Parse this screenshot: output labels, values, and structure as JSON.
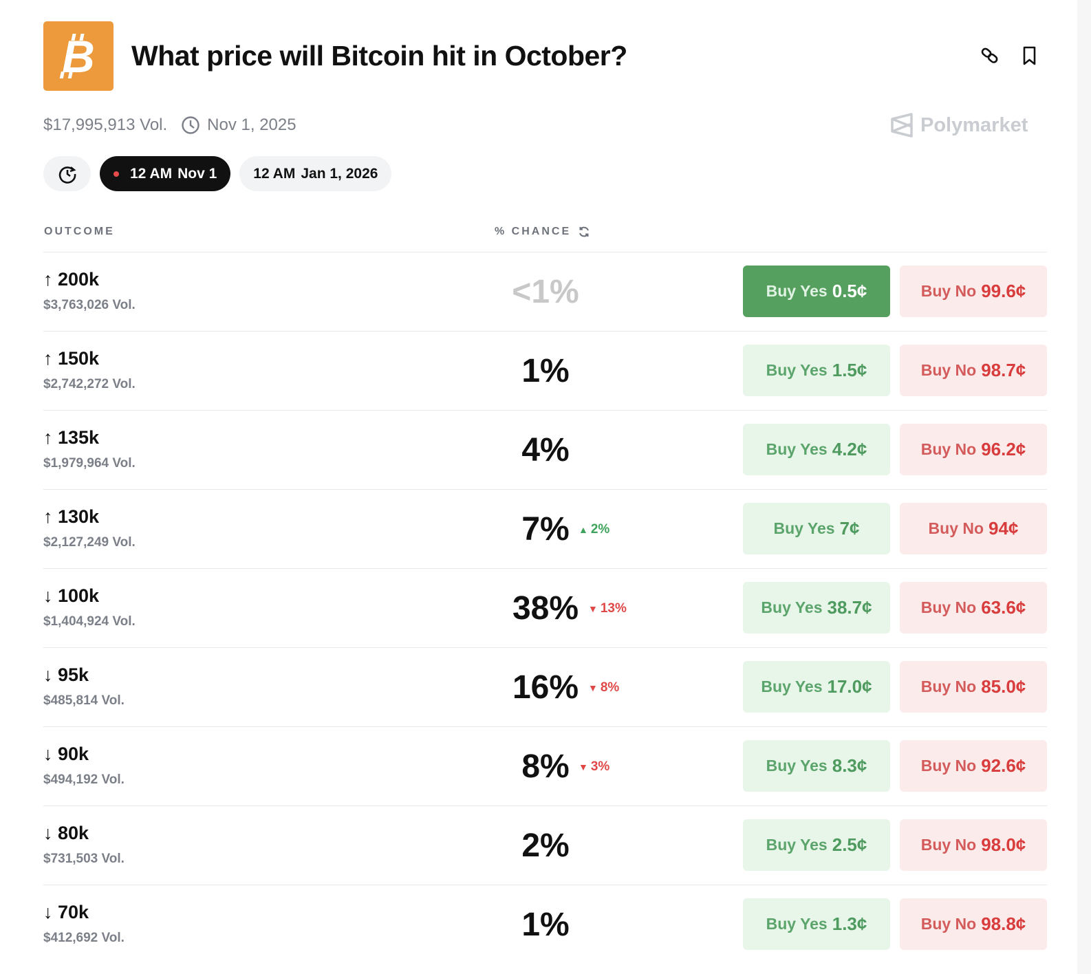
{
  "header": {
    "title": "What price will Bitcoin hit in October?",
    "volume": "$17,995,913 Vol.",
    "end_date": "Nov 1, 2025",
    "brand": "Polymarket"
  },
  "pills": [
    {
      "time": "12 AM",
      "date": "Nov 1",
      "active": true
    },
    {
      "time": "12 AM",
      "date": "Jan 1, 2026",
      "active": false
    }
  ],
  "columns": {
    "outcome": "OUTCOME",
    "chance": "% CHANCE"
  },
  "colors": {
    "brand_orange": "#ec9a3c",
    "yes_green": "#55a05e",
    "no_red": "#d83c3c"
  },
  "buttons": {
    "yes_label": "Buy Yes",
    "no_label": "Buy No"
  },
  "outcomes": [
    {
      "name": "↑ 200k",
      "volume": "$3,763,026 Vol.",
      "chance": "<1%",
      "change": "",
      "dir": "",
      "yes": "0.5¢",
      "no": "99.6¢"
    },
    {
      "name": "↑ 150k",
      "volume": "$2,742,272 Vol.",
      "chance": "1%",
      "change": "",
      "dir": "",
      "yes": "1.5¢",
      "no": "98.7¢"
    },
    {
      "name": "↑ 135k",
      "volume": "$1,979,964 Vol.",
      "chance": "4%",
      "change": "",
      "dir": "",
      "yes": "4.2¢",
      "no": "96.2¢"
    },
    {
      "name": "↑ 130k",
      "volume": "$2,127,249 Vol.",
      "chance": "7%",
      "change": "2%",
      "dir": "up",
      "yes": "7¢",
      "no": "94¢"
    },
    {
      "name": "↓ 100k",
      "volume": "$1,404,924 Vol.",
      "chance": "38%",
      "change": "13%",
      "dir": "down",
      "yes": "38.7¢",
      "no": "63.6¢"
    },
    {
      "name": "↓ 95k",
      "volume": "$485,814 Vol.",
      "chance": "16%",
      "change": "8%",
      "dir": "down",
      "yes": "17.0¢",
      "no": "85.0¢"
    },
    {
      "name": "↓ 90k",
      "volume": "$494,192 Vol.",
      "chance": "8%",
      "change": "3%",
      "dir": "down",
      "yes": "8.3¢",
      "no": "92.6¢"
    },
    {
      "name": "↓ 80k",
      "volume": "$731,503 Vol.",
      "chance": "2%",
      "change": "",
      "dir": "",
      "yes": "2.5¢",
      "no": "98.0¢"
    },
    {
      "name": "↓ 70k",
      "volume": "$412,692 Vol.",
      "chance": "1%",
      "change": "",
      "dir": "",
      "yes": "1.3¢",
      "no": "98.8¢"
    }
  ]
}
